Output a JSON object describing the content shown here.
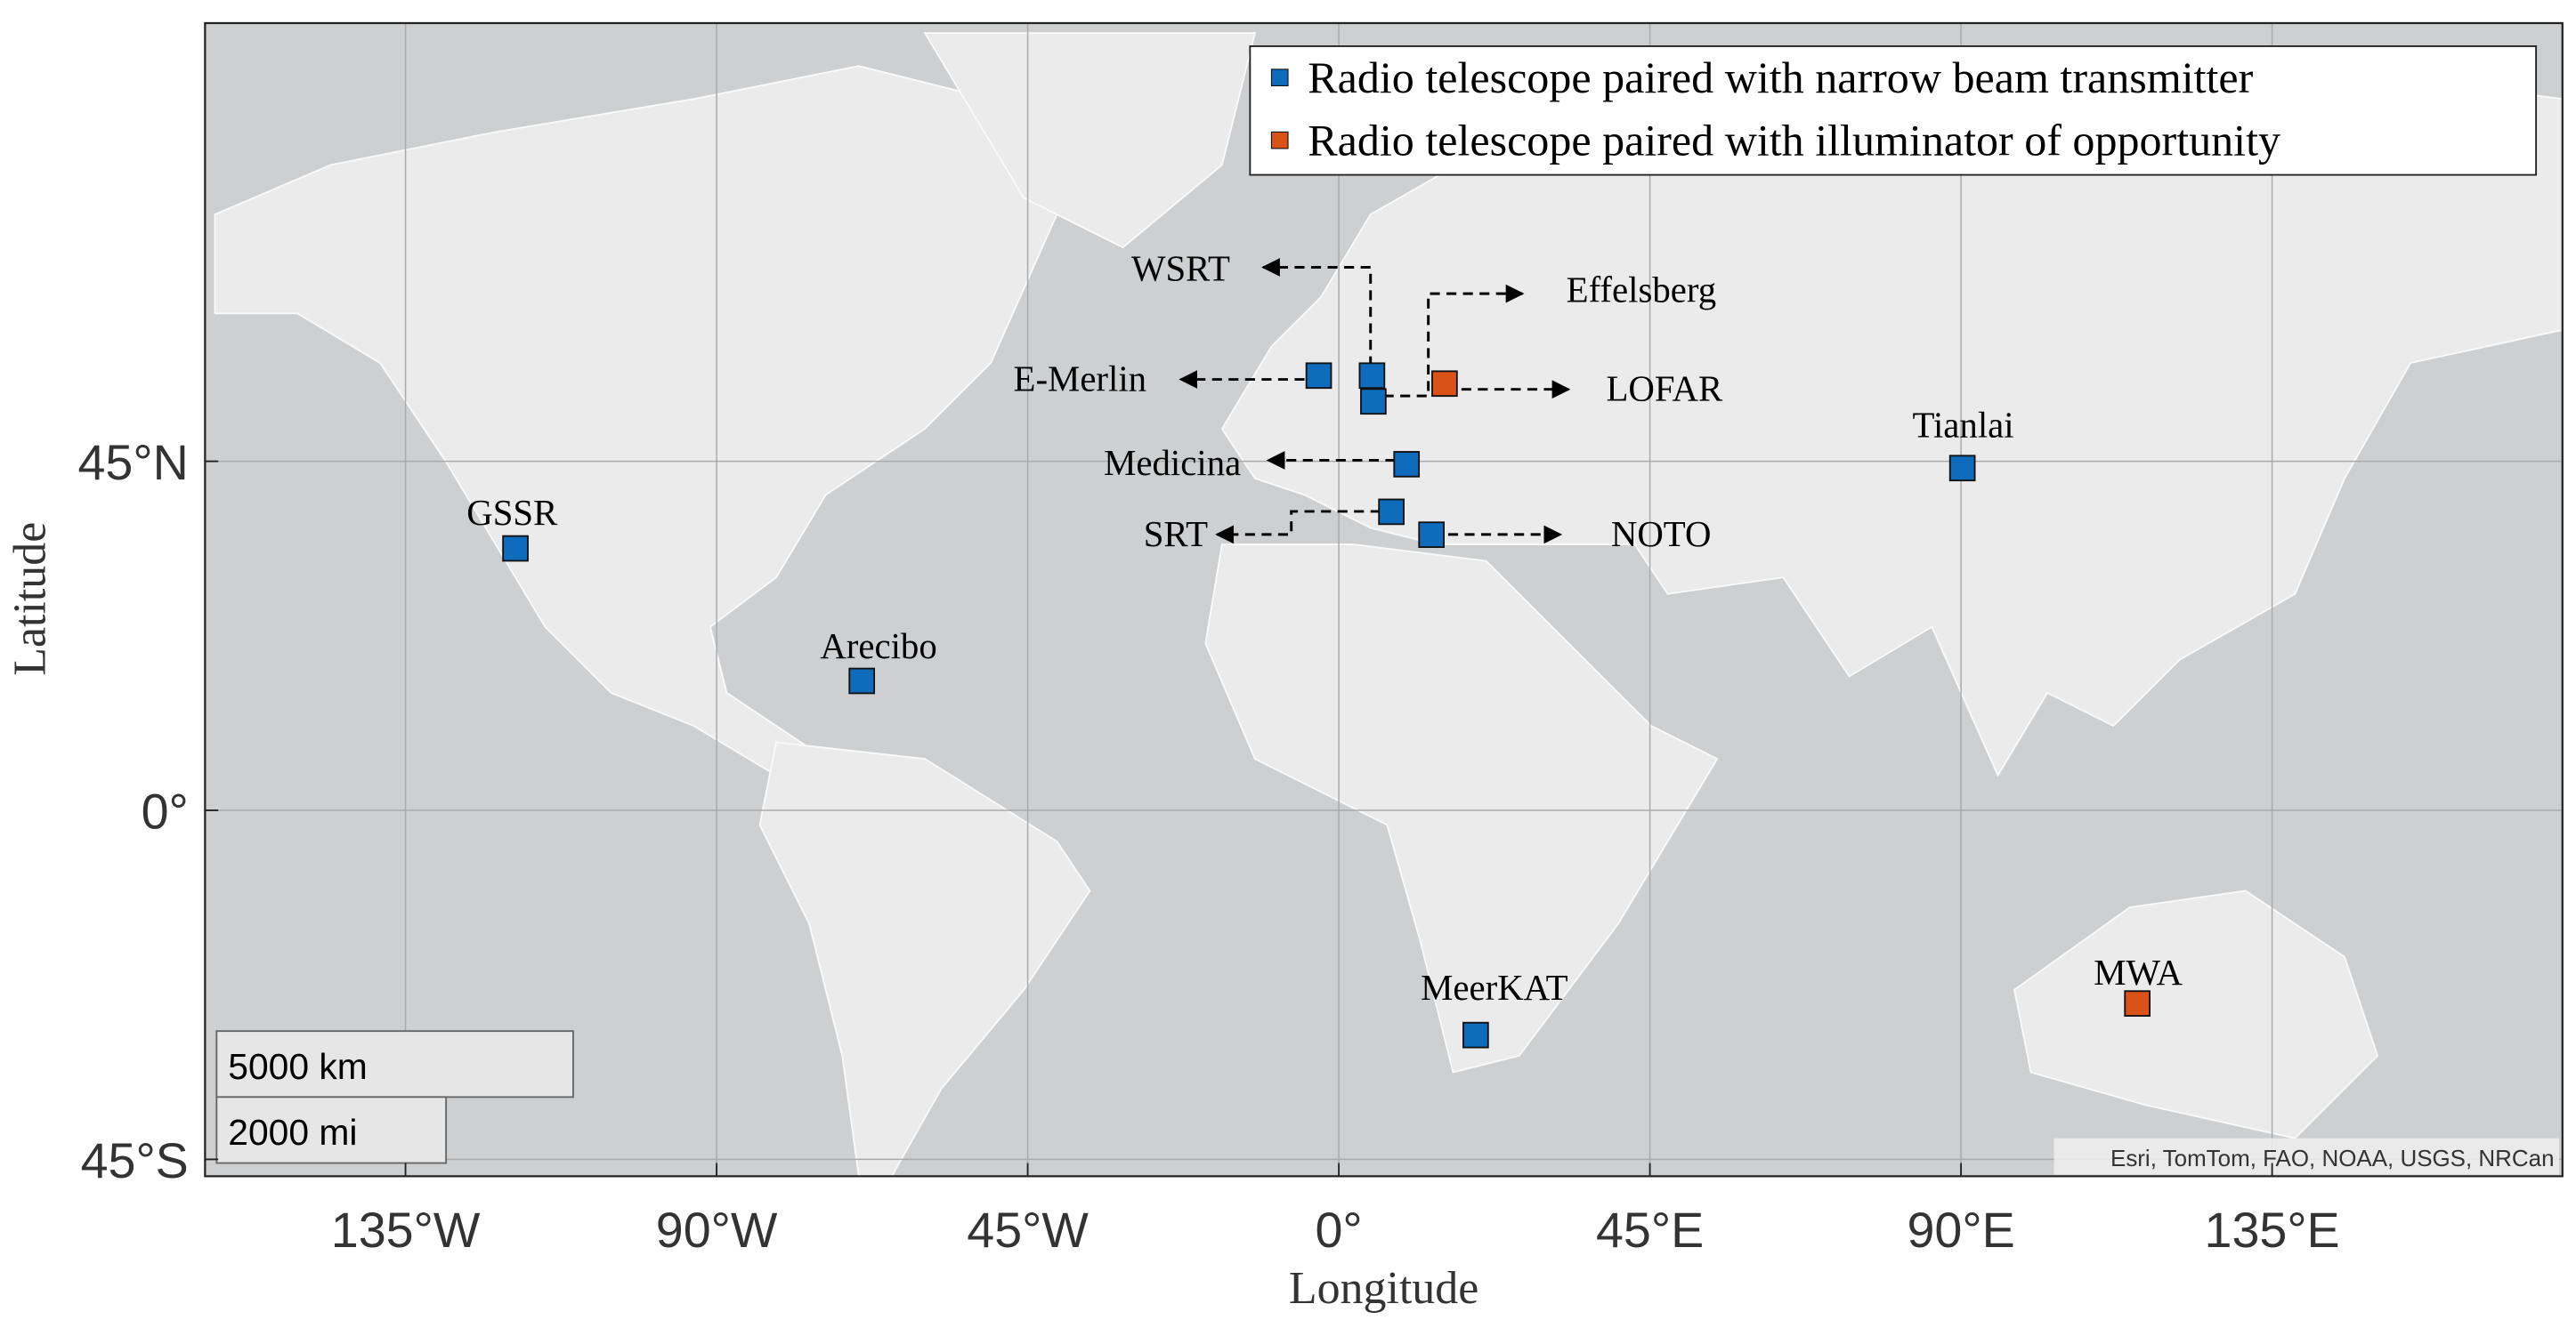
{
  "chart_data": {
    "type": "scatter",
    "x_label": "Longitude",
    "y_label": "Latitude",
    "xlim": [
      -164,
      177
    ],
    "ylim": [
      -46.7,
      74.4
    ],
    "projection": "mercator",
    "grid": true,
    "xticks": [
      {
        "value": -135,
        "label": "135°W"
      },
      {
        "value": -90,
        "label": "90°W"
      },
      {
        "value": -45,
        "label": "45°W"
      },
      {
        "value": 0,
        "label": "0°"
      },
      {
        "value": 45,
        "label": "45°E"
      },
      {
        "value": 90,
        "label": "90°E"
      },
      {
        "value": 135,
        "label": "135°E"
      }
    ],
    "yticks": [
      {
        "value": -45,
        "label": "45°S"
      },
      {
        "value": 0,
        "label": "0°"
      },
      {
        "value": 45,
        "label": "45°N"
      }
    ],
    "legend_position": "upper right",
    "series": [
      {
        "name": "Radio telescope paired with narrow beam transmitter",
        "color": "#0f6cbd",
        "labels": [
          "GSSR",
          "Arecibo",
          "E-Merlin",
          "WSRT",
          "Effelsberg",
          "Medicina",
          "SRT",
          "NOTO",
          "Tianlai",
          "MeerKAT"
        ],
        "x": [
          -119.1,
          -69,
          -2.9,
          4.8,
          5.0,
          9.8,
          7.6,
          13.4,
          90.2,
          19.8
        ],
        "values": [
          35.4,
          18.4,
          53.1,
          53.1,
          50.8,
          44.7,
          39.6,
          37.0,
          44.3,
          -30.9
        ]
      },
      {
        "name": "Radio telescope paired with illuminator of opportunity",
        "color": "#d95319",
        "labels": [
          "LOFAR",
          "MWA"
        ],
        "x": [
          15.3,
          115.5
        ],
        "values": [
          52.4,
          -26.9
        ]
      }
    ],
    "scale_bar": [
      "5000 km",
      "2000 mi"
    ],
    "attribution": "Esri, TomTom, FAO, NOAA, USGS, NRCan"
  }
}
